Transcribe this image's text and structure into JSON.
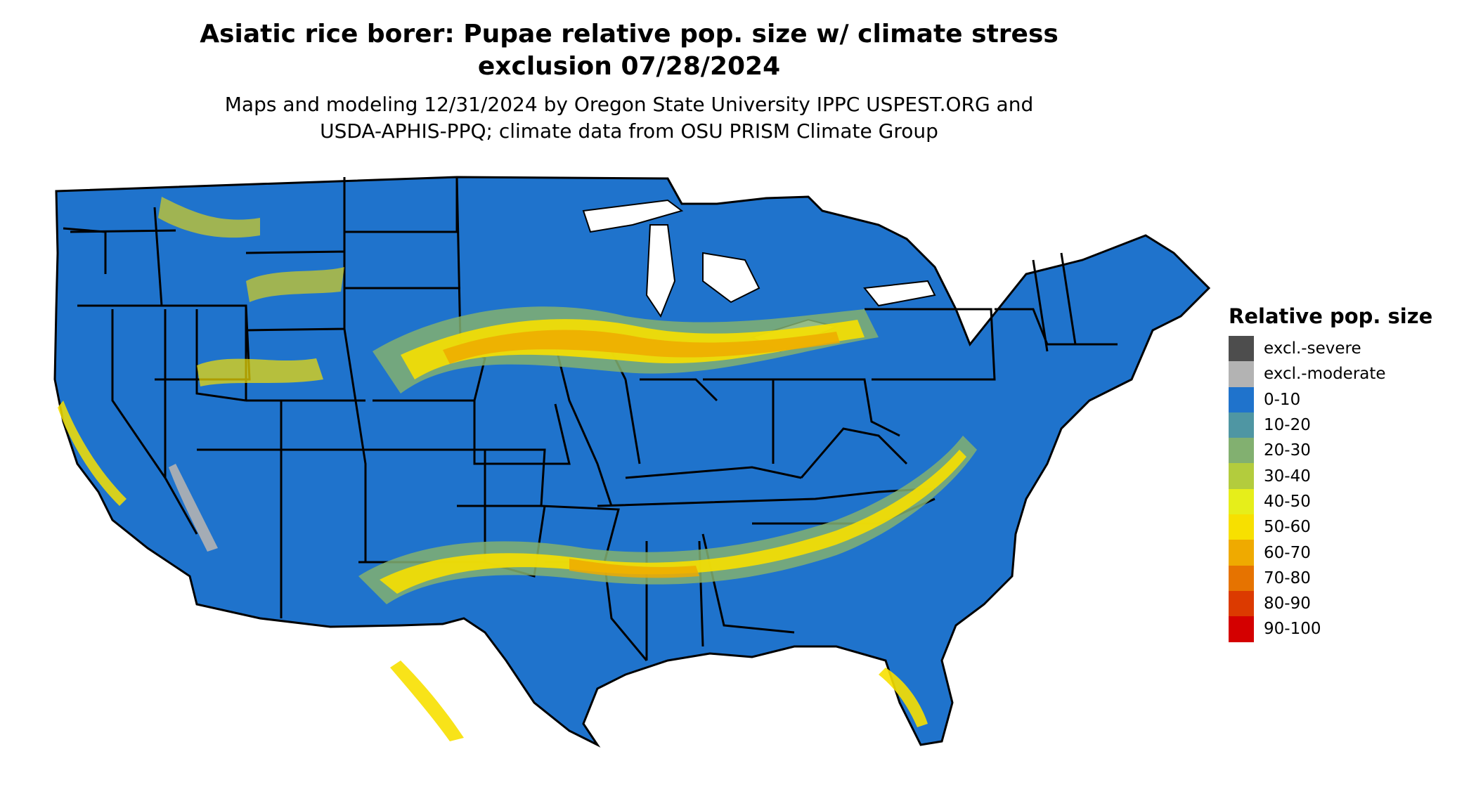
{
  "title": {
    "line1": "Asiatic rice borer: Pupae relative pop. size w/ climate stress",
    "line2": "exclusion 07/28/2024"
  },
  "subtitle": {
    "line1": "Maps and modeling 12/31/2024 by Oregon State University IPPC USPEST.ORG and",
    "line2": "USDA-APHIS-PPQ; climate data from OSU PRISM Climate Group"
  },
  "legend": {
    "title": "Relative pop. size",
    "items": [
      {
        "label": "excl.-severe",
        "color": "#4d4d4d"
      },
      {
        "label": "excl.-moderate",
        "color": "#b3b3b3"
      },
      {
        "label": "0-10",
        "color": "#1f73cc"
      },
      {
        "label": "10-20",
        "color": "#4f96a3"
      },
      {
        "label": "20-30",
        "color": "#82b070"
      },
      {
        "label": "30-40",
        "color": "#b3cc3d"
      },
      {
        "label": "40-50",
        "color": "#e6ee1a"
      },
      {
        "label": "50-60",
        "color": "#f7e000"
      },
      {
        "label": "60-70",
        "color": "#efaa00"
      },
      {
        "label": "70-80",
        "color": "#e67300"
      },
      {
        "label": "80-90",
        "color": "#dc3a00"
      },
      {
        "label": "90-100",
        "color": "#d40000"
      }
    ]
  },
  "map": {
    "base_color": "#1f73cc",
    "border_color": "#000000",
    "icons": [
      "us-states-map"
    ]
  }
}
